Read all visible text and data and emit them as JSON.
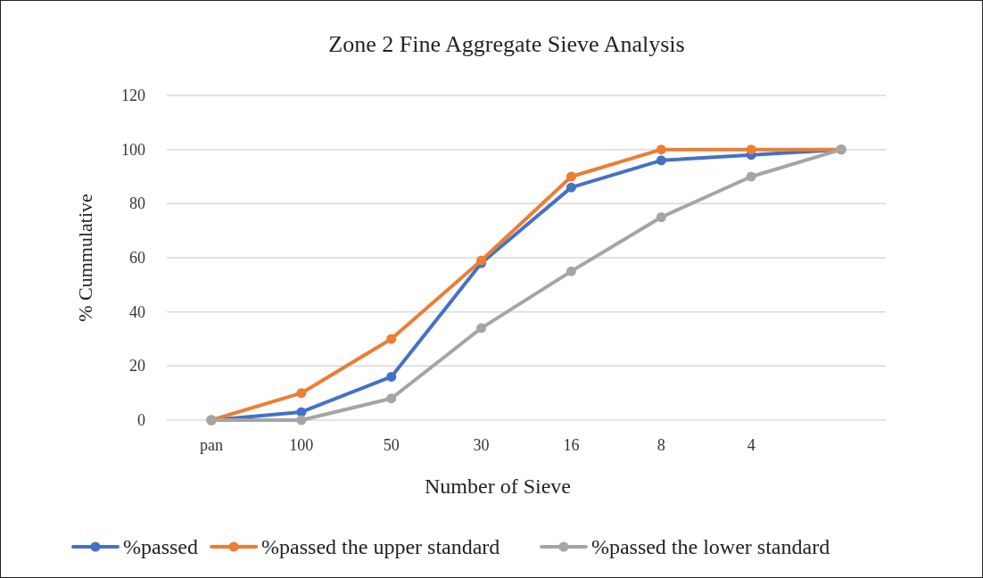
{
  "chart_data": {
    "type": "line",
    "title": "Zone 2 Fine Aggregate Sieve Analysis",
    "xlabel": "Number of Sieve",
    "ylabel": "% Cummulative",
    "categories": [
      "pan",
      "100",
      "50",
      "30",
      "16",
      "8",
      "4",
      null
    ],
    "series": [
      {
        "name": "%passed",
        "color": "#4472c4",
        "values": [
          0,
          3,
          16,
          58,
          86,
          96,
          98,
          100
        ]
      },
      {
        "name": "%passed the upper standard",
        "color": "#ed7d31",
        "values": [
          0,
          10,
          30,
          59,
          90,
          100,
          100,
          100
        ]
      },
      {
        "name": "%passed the lower standard",
        "color": "#a5a5a5",
        "values": [
          0,
          0,
          8,
          34,
          55,
          75,
          90,
          100
        ]
      }
    ],
    "ylim": [
      0,
      120
    ],
    "yticks": [
      0,
      20,
      40,
      60,
      80,
      100,
      120
    ],
    "grid": "y",
    "legend": "bottom",
    "marker": "circle",
    "line_style": "solid"
  }
}
